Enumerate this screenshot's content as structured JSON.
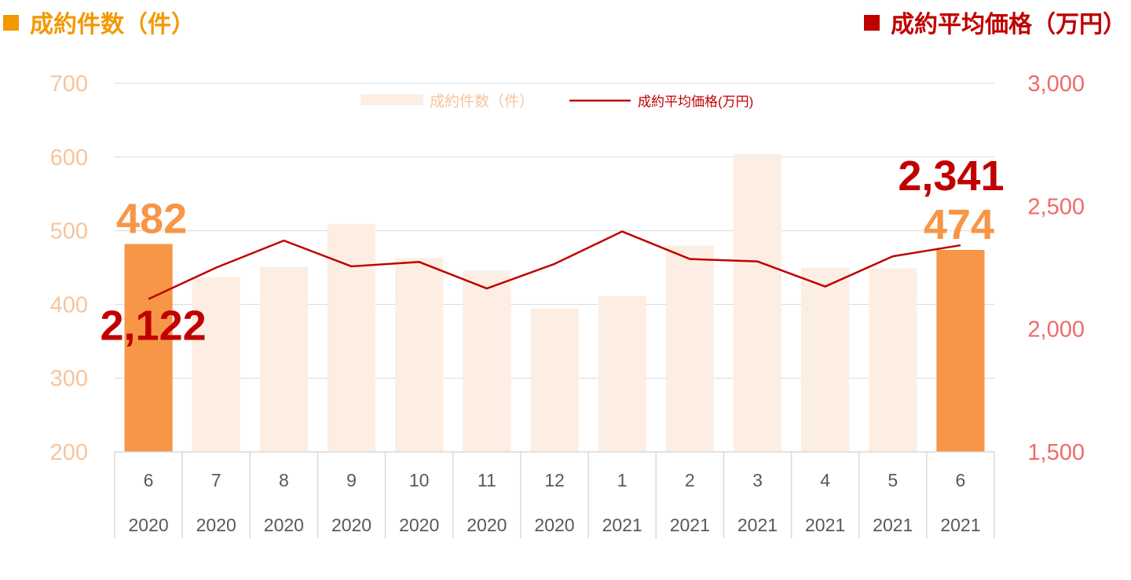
{
  "header": {
    "left_title": "成約件数（件）",
    "right_title": "成約平均価格（万円）"
  },
  "colors": {
    "bar_light": "#fdeee3",
    "bar_highlight": "#f79646",
    "line": "#c00000",
    "left_axis": "#f8c49a",
    "right_axis": "#f06a6a",
    "grid": "#d9d9d9",
    "header_left": "#f39800",
    "header_right": "#c00000"
  },
  "chart_data": {
    "type": "bar+line",
    "categories": [
      "6",
      "7",
      "8",
      "9",
      "10",
      "11",
      "12",
      "1",
      "2",
      "3",
      "4",
      "5",
      "6"
    ],
    "years": [
      "2020",
      "2020",
      "2020",
      "2020",
      "2020",
      "2020",
      "2020",
      "2021",
      "2021",
      "2021",
      "2021",
      "2021",
      "2021"
    ],
    "series": [
      {
        "name": "成約件数（件）",
        "type": "bar",
        "axis": "left",
        "values": [
          482,
          437,
          451,
          509,
          463,
          446,
          395,
          411,
          480,
          604,
          450,
          449,
          474
        ],
        "highlight_indices": [
          0,
          12
        ]
      },
      {
        "name": "成約平均価格(万円)",
        "type": "line",
        "axis": "right",
        "values": [
          2122,
          2250,
          2360,
          2255,
          2273,
          2165,
          2265,
          2397,
          2285,
          2275,
          2173,
          2296,
          2341
        ]
      }
    ],
    "left_axis": {
      "min": 200,
      "max": 700,
      "ticks": [
        "200",
        "300",
        "400",
        "500",
        "600",
        "700"
      ]
    },
    "right_axis": {
      "min": 1500,
      "max": 3000,
      "ticks": [
        "1,500",
        "2,000",
        "2,500",
        "3,000"
      ]
    },
    "annotations": [
      {
        "text": "482",
        "series": "bar",
        "index": 0
      },
      {
        "text": "474",
        "series": "bar",
        "index": 12
      },
      {
        "text": "2,122",
        "series": "line",
        "index": 0
      },
      {
        "text": "2,341",
        "series": "line",
        "index": 12
      }
    ],
    "grid": true,
    "legend": "top-center"
  }
}
